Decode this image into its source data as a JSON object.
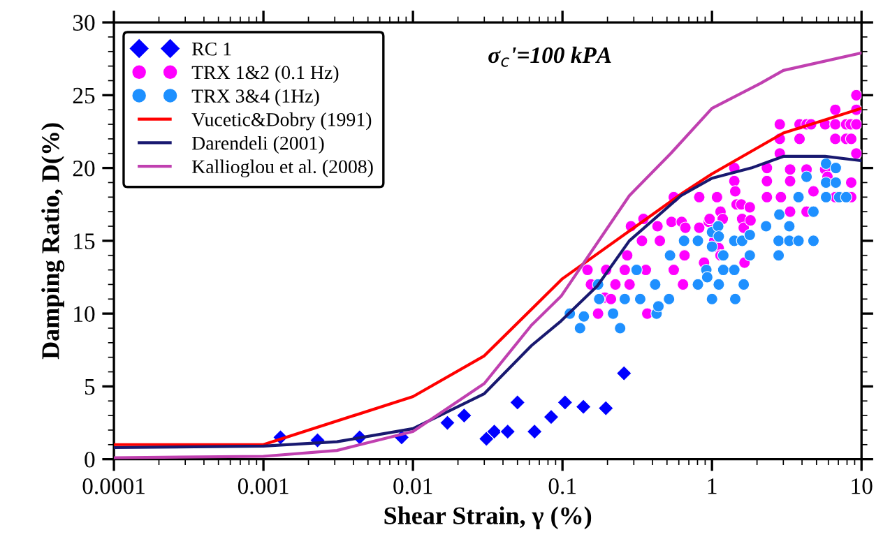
{
  "chart_data": {
    "type": "scatter",
    "xlabel": "Shear Strain, γ (%)",
    "ylabel": "Damping Ratio, D(%)",
    "log": "x",
    "xlim": [
      0.0001,
      10
    ],
    "xticks": [
      {
        "value": 0.0001,
        "label": "0.0001"
      },
      {
        "value": 0.001,
        "label": "0.001"
      },
      {
        "value": 0.01,
        "label": "0.01"
      },
      {
        "value": 0.1,
        "label": "0.1"
      },
      {
        "value": 1,
        "label": "1"
      },
      {
        "value": 10,
        "label": "10"
      }
    ],
    "ylim": [
      0,
      30
    ],
    "yticks": [
      0,
      5,
      10,
      15,
      20,
      25,
      30
    ],
    "grid": false,
    "legend": "top left",
    "annotations": [
      "σ$_{c}$'=100 kPA"
    ],
    "series": [
      {
        "name": "RC 1",
        "marker": "diamond",
        "color": "#0000ff",
        "x": [
          0.0013,
          0.0023,
          0.0044,
          0.0084,
          0.017,
          0.022,
          0.031,
          0.035,
          0.043,
          0.05,
          0.065,
          0.084,
          0.104,
          0.138,
          0.195,
          0.258
        ],
        "values": [
          1.5,
          1.3,
          1.5,
          1.5,
          2.5,
          3.0,
          1.4,
          1.9,
          1.9,
          3.9,
          1.9,
          2.9,
          3.9,
          3.6,
          3.5,
          5.9
        ]
      },
      {
        "name": "TRX 1&2 (0.1 Hz)",
        "marker": "circle",
        "color": "#ff00ff",
        "x": [
          0.147,
          0.155,
          0.196,
          0.192,
          0.211,
          0.173,
          0.226,
          0.261,
          0.271,
          0.281,
          0.287,
          0.348,
          0.34,
          0.361,
          0.369,
          0.432,
          0.448,
          0.536,
          0.555,
          0.555,
          0.627,
          0.664,
          0.64,
          0.655,
          0.822,
          0.822,
          0.951,
          0.964,
          0.885,
          0.984,
          1.035,
          1.08,
          1.14,
          1.18,
          1.11,
          1.14,
          1.41,
          1.41,
          1.43,
          1.46,
          1.57,
          1.59,
          1.63,
          1.65,
          1.79,
          1.81,
          2.33,
          2.33,
          2.33,
          2.84,
          2.84,
          2.84,
          2.89,
          3.33,
          3.33,
          3.33,
          3.85,
          3.85,
          4.29,
          4.29,
          4.6,
          4.77,
          4.29,
          5.71,
          5.71,
          5.92,
          6.68,
          6.68,
          6.68,
          6.68,
          7.89,
          7.89,
          8.47,
          8.53,
          8.53,
          8.53,
          9.23,
          9.23,
          9.23,
          9.23
        ],
        "values": [
          13.0,
          12.0,
          13.0,
          11.1,
          11.0,
          10.0,
          12.0,
          13.0,
          14.0,
          12.0,
          16.0,
          16.5,
          15.0,
          13.0,
          10.0,
          16.0,
          15.0,
          16.3,
          18.0,
          13.0,
          16.3,
          15.9,
          12.0,
          14.0,
          18.0,
          15.9,
          16.3,
          16.5,
          13.5,
          null,
          15.0,
          18.0,
          17.0,
          16.5,
          14.5,
          14.0,
          20.0,
          19.1,
          18.4,
          17.5,
          17.5,
          16.5,
          15.9,
          13.5,
          17.3,
          16.4,
          20.0,
          19.1,
          18.0,
          23.0,
          22.0,
          21.0,
          18.0,
          19.9,
          19.1,
          17.0,
          23.0,
          22.0,
          23.0,
          19.9,
          23.0,
          18.4,
          17.0,
          23.0,
          19.9,
          19.4,
          24.0,
          23.0,
          22.0,
          18.0,
          23.0,
          22.0,
          23.0,
          22.0,
          19.0,
          18.0,
          25.0,
          24.0,
          23.0,
          21.0
        ]
      },
      {
        "name": "TRX 3&4 (1Hz)",
        "marker": "circle",
        "color": "#1e90ff",
        "x": [
          0.112,
          0.139,
          0.131,
          0.173,
          0.176,
          0.218,
          0.243,
          0.261,
          0.313,
          0.331,
          0.417,
          0.426,
          0.438,
          0.524,
          0.516,
          0.627,
          0.65,
          0.805,
          0.805,
          0.916,
          0.929,
          1.0,
          1.1,
          1.11,
          1.0,
          1.0,
          1.11,
          1.19,
          1.19,
          1.41,
          1.41,
          1.43,
          1.59,
          1.63,
          1.79,
          1.79,
          2.3,
          2.79,
          2.79,
          2.82,
          3.29,
          3.29,
          3.79,
          3.79,
          4.77,
          4.77,
          4.29,
          5.79,
          5.79,
          5.79,
          6.73,
          6.73,
          7.08,
          7.89
        ],
        "values": [
          10.0,
          9.8,
          9.0,
          12.0,
          11.0,
          10.0,
          9.0,
          11.0,
          13.0,
          11.0,
          12.0,
          10.0,
          10.5,
          14.0,
          11.0,
          null,
          15.0,
          15.0,
          12.0,
          13.0,
          12.5,
          15.6,
          16.0,
          15.3,
          14.6,
          11.0,
          12.0,
          14.0,
          13.0,
          15.0,
          13.0,
          11.0,
          15.0,
          12.0,
          15.4,
          14.0,
          16.0,
          15.0,
          14.0,
          16.8,
          16.0,
          15.0,
          18.0,
          15.0,
          17.0,
          15.0,
          19.4,
          20.3,
          19.0,
          18.0,
          20.0,
          19.0,
          18.0,
          18.0
        ]
      },
      {
        "name": "Vucetic&Dobry (1991)",
        "type": "line",
        "color": "#ff0000",
        "x": [
          0.0001,
          0.001,
          0.01,
          0.03,
          0.1,
          0.64,
          1.0,
          3.0,
          10
        ],
        "values": [
          1.0,
          1.0,
          4.3,
          7.1,
          12.4,
          18.3,
          19.6,
          22.4,
          24.1
        ]
      },
      {
        "name": "Darendeli (2001)",
        "type": "line",
        "color": "#191970",
        "x": [
          0.0001,
          0.001,
          0.0031,
          0.01,
          0.03,
          0.062,
          0.098,
          0.171,
          0.28,
          0.62,
          1.0,
          1.83,
          3.0,
          5.7,
          10
        ],
        "values": [
          0.8,
          0.9,
          1.2,
          2.1,
          4.5,
          7.8,
          9.5,
          11.9,
          15.0,
          18.1,
          19.3,
          20.0,
          20.8,
          20.8,
          20.5
        ]
      },
      {
        "name": "Kallioglou et al. (2008)",
        "type": "line",
        "color": "#c040b0",
        "x": [
          0.0001,
          0.001,
          0.0031,
          0.01,
          0.03,
          0.062,
          0.098,
          0.28,
          0.53,
          1.0,
          2.1,
          3.0,
          10
        ],
        "values": [
          0.1,
          0.2,
          0.6,
          1.9,
          5.2,
          9.2,
          11.2,
          18.1,
          21.0,
          24.1,
          25.8,
          26.7,
          27.9
        ]
      }
    ]
  }
}
